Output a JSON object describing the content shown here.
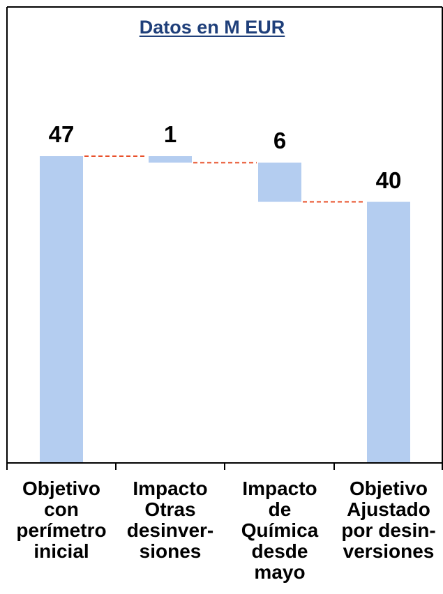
{
  "chart_data": {
    "type": "bar",
    "subtype": "waterfall",
    "title": "Datos en M EUR",
    "categories": [
      [
        "Objetivo",
        "con",
        "perímetro",
        "inicial"
      ],
      [
        "Impacto",
        "Otras",
        "desinver-",
        "siones"
      ],
      [
        "Impacto",
        "de",
        "Química",
        "desde",
        "mayo"
      ],
      [
        "Objetivo",
        "Ajustado",
        "por desin-",
        "versiones"
      ]
    ],
    "values": [
      47,
      -1,
      -6,
      40
    ],
    "value_labels": [
      "47",
      "1",
      "6",
      "40"
    ],
    "ylim": [
      0,
      52
    ],
    "grid": false,
    "bar_color": "#b4cdf0",
    "connector_color": "#e8502a",
    "title_color": "#1f3f7a"
  }
}
